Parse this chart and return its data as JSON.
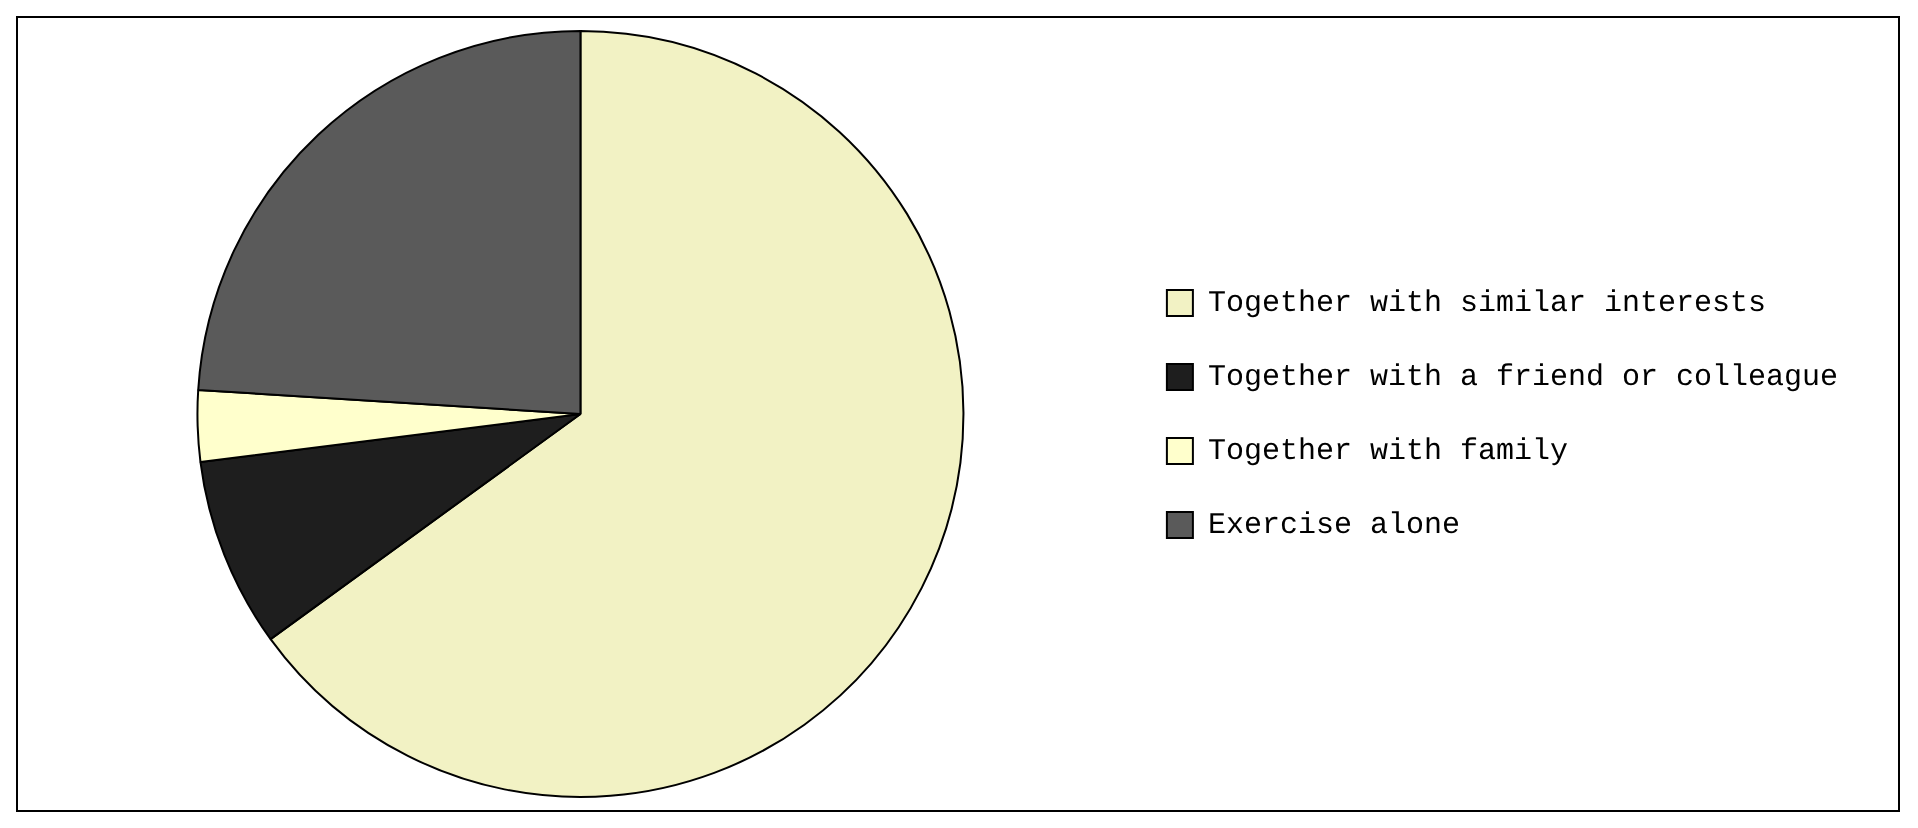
{
  "chart_data": {
    "type": "pie",
    "categories": [
      "Together with similar interests",
      "Together with a friend or colleague",
      "Together with family",
      "Exercise alone"
    ],
    "values": [
      65,
      8,
      3,
      24
    ],
    "colors": [
      "#f2f2c4",
      "#1e1e1e",
      "#ffffcc",
      "#5a5a5a"
    ],
    "legend": "right"
  }
}
